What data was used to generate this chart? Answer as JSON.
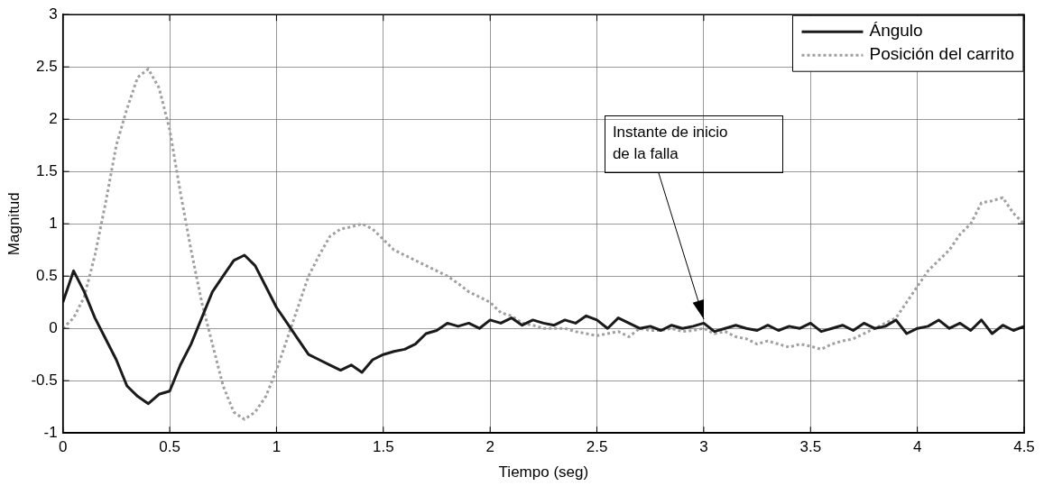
{
  "chart_data": {
    "type": "line",
    "xlabel": "Tiempo (seg)",
    "ylabel": "Magnitud",
    "x": [
      0,
      0.05,
      0.1,
      0.15,
      0.2,
      0.25,
      0.3,
      0.35,
      0.4,
      0.45,
      0.5,
      0.55,
      0.6,
      0.65,
      0.7,
      0.75,
      0.8,
      0.85,
      0.9,
      0.95,
      1.0,
      1.05,
      1.1,
      1.15,
      1.2,
      1.25,
      1.3,
      1.35,
      1.4,
      1.45,
      1.5,
      1.55,
      1.6,
      1.65,
      1.7,
      1.75,
      1.8,
      1.85,
      1.9,
      1.95,
      2.0,
      2.05,
      2.1,
      2.15,
      2.2,
      2.25,
      2.3,
      2.35,
      2.4,
      2.45,
      2.5,
      2.55,
      2.6,
      2.65,
      2.7,
      2.75,
      2.8,
      2.85,
      2.9,
      2.95,
      3.0,
      3.05,
      3.1,
      3.15,
      3.2,
      3.25,
      3.3,
      3.35,
      3.4,
      3.45,
      3.5,
      3.55,
      3.6,
      3.65,
      3.7,
      3.75,
      3.8,
      3.85,
      3.9,
      3.95,
      4.0,
      4.05,
      4.1,
      4.15,
      4.2,
      4.25,
      4.3,
      4.35,
      4.4,
      4.45,
      4.5
    ],
    "series": [
      {
        "name": "Ángulo",
        "color": "#1a1a1a",
        "line_style": "solid",
        "values": [
          0.25,
          0.55,
          0.35,
          0.1,
          -0.1,
          -0.3,
          -0.55,
          -0.65,
          -0.72,
          -0.63,
          -0.6,
          -0.35,
          -0.15,
          0.1,
          0.35,
          0.5,
          0.65,
          0.7,
          0.6,
          0.4,
          0.2,
          0.05,
          -0.1,
          -0.25,
          -0.3,
          -0.35,
          -0.4,
          -0.35,
          -0.42,
          -0.3,
          -0.25,
          -0.22,
          -0.2,
          -0.15,
          -0.05,
          -0.02,
          0.05,
          0.02,
          0.05,
          0.0,
          0.08,
          0.05,
          0.1,
          0.03,
          0.08,
          0.05,
          0.03,
          0.08,
          0.05,
          0.12,
          0.08,
          0.0,
          0.1,
          0.05,
          0.0,
          0.02,
          -0.02,
          0.03,
          0.0,
          0.02,
          0.05,
          -0.03,
          0.0,
          0.03,
          0.0,
          -0.02,
          0.03,
          -0.02,
          0.02,
          0.0,
          0.05,
          -0.03,
          0.0,
          0.03,
          -0.02,
          0.05,
          0.0,
          0.02,
          0.08,
          -0.05,
          0.0,
          0.02,
          0.08,
          0.0,
          0.05,
          -0.02,
          0.08,
          -0.05,
          0.03,
          -0.02,
          0.02
        ]
      },
      {
        "name": "Posición del carrito",
        "color": "#a0a0a0",
        "line_style": "dotted",
        "values": [
          0,
          0.1,
          0.3,
          0.7,
          1.2,
          1.75,
          2.1,
          2.4,
          2.48,
          2.3,
          1.9,
          1.3,
          0.75,
          0.25,
          -0.15,
          -0.55,
          -0.8,
          -0.87,
          -0.8,
          -0.65,
          -0.4,
          -0.1,
          0.2,
          0.5,
          0.7,
          0.88,
          0.95,
          0.97,
          1.0,
          0.95,
          0.85,
          0.75,
          0.7,
          0.65,
          0.6,
          0.55,
          0.5,
          0.43,
          0.35,
          0.3,
          0.25,
          0.15,
          0.12,
          0.05,
          0.03,
          0.0,
          0.0,
          0.0,
          -0.03,
          -0.05,
          -0.07,
          -0.05,
          -0.03,
          -0.08,
          0.0,
          -0.02,
          -0.02,
          0.0,
          -0.03,
          -0.02,
          0.0,
          -0.05,
          -0.03,
          -0.08,
          -0.1,
          -0.15,
          -0.12,
          -0.15,
          -0.18,
          -0.15,
          -0.17,
          -0.2,
          -0.15,
          -0.12,
          -0.1,
          -0.05,
          0.0,
          0.05,
          0.1,
          0.25,
          0.4,
          0.55,
          0.65,
          0.75,
          0.9,
          1.0,
          1.2,
          1.22,
          1.25,
          1.1,
          1.0
        ]
      }
    ],
    "xlim": [
      0,
      4.5
    ],
    "xticks": [
      0,
      0.5,
      1,
      1.5,
      2,
      2.5,
      3,
      3.5,
      4,
      4.5
    ],
    "ylim": [
      -1,
      3
    ],
    "yticks": [
      -1,
      -0.5,
      0,
      0.5,
      1,
      1.5,
      2,
      2.5,
      3
    ],
    "grid": true,
    "legend": "top right",
    "annotations": [
      {
        "text": "Instante de inicio\nde la falla",
        "x": 3.0,
        "y": 0.05
      }
    ]
  }
}
